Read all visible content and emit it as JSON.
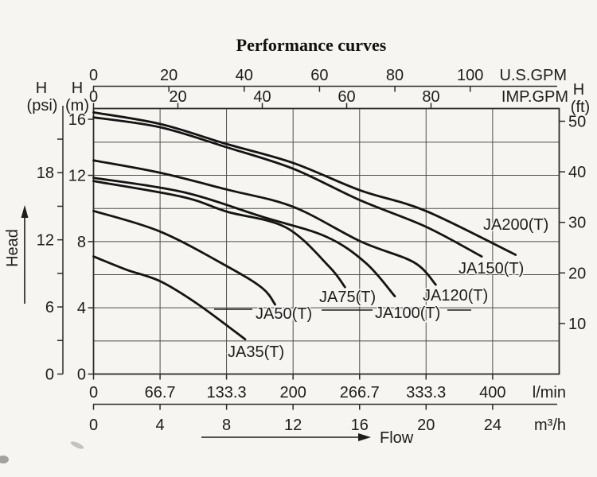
{
  "page_title": "Performance curves",
  "chart_data": {
    "type": "line",
    "title": "Performance curves",
    "grid": "on",
    "x_primary_unit": "l/min",
    "y_primary_unit": "m",
    "xlim_lmin": [
      0,
      467
    ],
    "ylim_m": [
      0,
      16
    ],
    "x_axes": [
      {
        "id": "us_gpm",
        "label": "U.S.GPM",
        "ticks": [
          "0",
          "20",
          "40",
          "60",
          "80",
          "100"
        ],
        "position": "top-outer"
      },
      {
        "id": "imp_gpm",
        "label": "IMP.GPM",
        "ticks": [
          "0",
          "20",
          "40",
          "60",
          "80"
        ],
        "position": "top-inner"
      },
      {
        "id": "l_min",
        "label": "l/min",
        "ticks": [
          "0",
          "66.7",
          "133.3",
          "200",
          "266.7",
          "333.3",
          "400"
        ],
        "position": "bottom-inner"
      },
      {
        "id": "m3_h",
        "label": "m³/h",
        "ticks": [
          "0",
          "4",
          "8",
          "12",
          "16",
          "20",
          "24"
        ],
        "position": "bottom-outer"
      }
    ],
    "y_axes": [
      {
        "id": "psi",
        "label_h": "H",
        "label_unit": "(psi)",
        "ticks": [
          "18",
          "12",
          "6",
          "0"
        ],
        "minor_step": 3,
        "max": 21,
        "position": "left-outer"
      },
      {
        "id": "m",
        "label_h": "H",
        "label_unit": "(m)",
        "ticks": [
          "16",
          "12",
          "8",
          "4",
          "0"
        ],
        "position": "left-inner"
      },
      {
        "id": "ft",
        "label_h": "H",
        "label_unit": "(ft)",
        "ticks": [
          "50",
          "40",
          "30",
          "20",
          "10"
        ],
        "position": "right"
      }
    ],
    "head_arrow_label": "Head",
    "flow_arrow_label": "Flow",
    "series": [
      {
        "name": "JA200(T)",
        "points": [
          [
            0,
            15.8
          ],
          [
            67,
            15.1
          ],
          [
            133,
            13.9
          ],
          [
            200,
            12.75
          ],
          [
            267,
            11.1
          ],
          [
            333,
            9.85
          ],
          [
            423,
            7.2
          ]
        ]
      },
      {
        "name": "JA150(T)",
        "points": [
          [
            0,
            15.5
          ],
          [
            67,
            14.9
          ],
          [
            133,
            13.7
          ],
          [
            200,
            12.4
          ],
          [
            267,
            10.5
          ],
          [
            333,
            8.9
          ],
          [
            389,
            7.1
          ]
        ]
      },
      {
        "name": "JA120(T)",
        "points": [
          [
            0,
            12.9
          ],
          [
            67,
            12.15
          ],
          [
            133,
            11.15
          ],
          [
            200,
            10.1
          ],
          [
            268,
            8.0
          ],
          [
            321,
            6.75
          ],
          [
            343,
            5.4
          ]
        ]
      },
      {
        "name": "JA100(T)",
        "points": [
          [
            0,
            11.85
          ],
          [
            89,
            11.0
          ],
          [
            169,
            9.5
          ],
          [
            233,
            8.3
          ],
          [
            273,
            6.7
          ],
          [
            302,
            4.7
          ]
        ]
      },
      {
        "name": "JA75(T)",
        "points": [
          [
            0,
            11.65
          ],
          [
            89,
            10.7
          ],
          [
            134,
            9.8
          ],
          [
            193,
            8.85
          ],
          [
            236,
            6.5
          ],
          [
            252,
            5.25
          ]
        ]
      },
      {
        "name": "JA50(T)",
        "points": [
          [
            0,
            9.85
          ],
          [
            67,
            8.6
          ],
          [
            134,
            6.5
          ],
          [
            169,
            5.2
          ],
          [
            182,
            4.2
          ]
        ]
      },
      {
        "name": "JA35(T)",
        "points": [
          [
            0,
            7.1
          ],
          [
            33,
            6.3
          ],
          [
            67,
            5.6
          ],
          [
            105,
            4.2
          ],
          [
            152,
            2.1
          ]
        ]
      }
    ]
  }
}
